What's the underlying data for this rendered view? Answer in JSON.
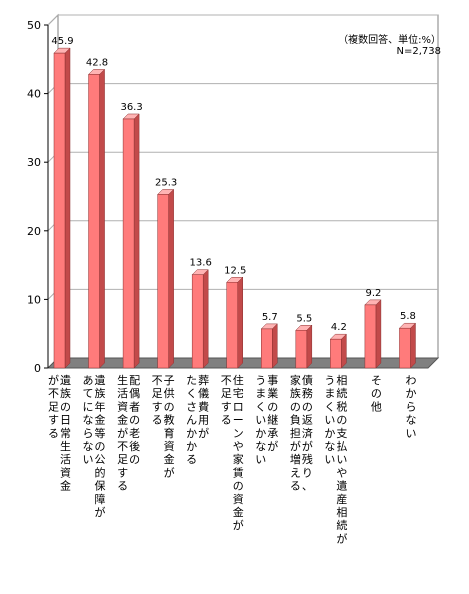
{
  "note": {
    "line1": "（複数回答、単位:%）",
    "line2": "N=2,738"
  },
  "colors": {
    "bar_front": "#ff7b7b",
    "bar_side": "#c24a4a",
    "bar_top": "#ffb3b3",
    "floor": "#808080",
    "grid": "#b0b0b0"
  },
  "chart_data": {
    "type": "bar",
    "ylim": [
      0,
      50
    ],
    "yticks": [
      0,
      10,
      20,
      30,
      40,
      50
    ],
    "grid": true,
    "categories": [
      [
        "遺族の日常生活資金",
        "が不足する"
      ],
      [
        "遺族年金等の公的保障が",
        "あてにならない"
      ],
      [
        "配偶者の老後の",
        "生活資金が不足する"
      ],
      [
        "子供の教育資金が",
        "不足する"
      ],
      [
        "葬儀費用が",
        "たくさんかかる"
      ],
      [
        "住宅ローンや家賃の資金が",
        "不足する"
      ],
      [
        "事業の継承が",
        "うまくいかない"
      ],
      [
        "債務の返済が残り、",
        "家族の負担が増える"
      ],
      [
        "相続税の支払いや遺産相続が",
        "うまくいかない"
      ],
      [
        "その他"
      ],
      [
        "わからない"
      ]
    ],
    "values": [
      45.9,
      42.8,
      36.3,
      25.3,
      13.6,
      12.5,
      5.7,
      5.5,
      4.2,
      9.2,
      5.8
    ],
    "value_labels": [
      "45.9",
      "42.8",
      "36.3",
      "25.3",
      "13.6",
      "12.5",
      "5.7",
      "5.5",
      "4.2",
      "9.2",
      "5.8"
    ]
  }
}
